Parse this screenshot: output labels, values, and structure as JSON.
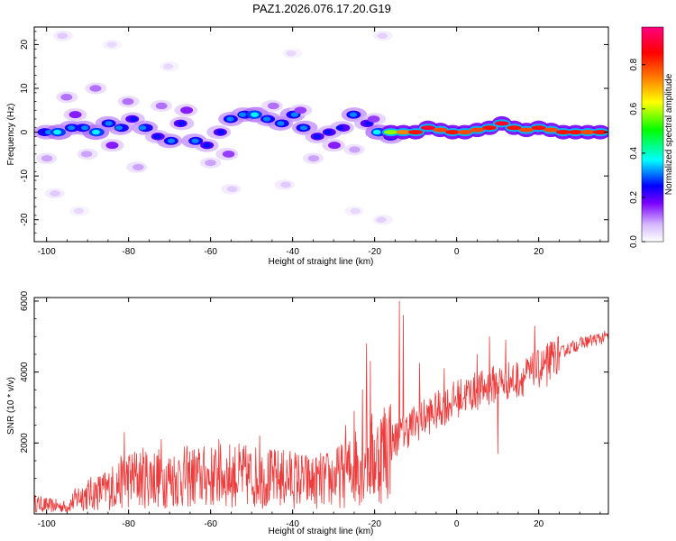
{
  "title": "PAZ1.2026.076.17.20.G19",
  "chart_data": [
    {
      "type": "heatmap",
      "title": "PAZ1.2026.076.17.20.G19",
      "xlabel": "Height of straight line (km)",
      "ylabel": "Frequency (Hz)",
      "xlim": [
        -103,
        37
      ],
      "ylim": [
        -25,
        24
      ],
      "x_ticks": [
        -100,
        -80,
        -60,
        -40,
        -20,
        0,
        20
      ],
      "y_ticks": [
        20,
        10,
        0,
        -10,
        -20
      ],
      "x_tick_labels": [
        "-100",
        "-80",
        "-60",
        "-40",
        "-20",
        "0",
        "20"
      ],
      "y_tick_labels": [
        "20",
        "10",
        "0",
        "-10",
        "-20"
      ],
      "description_of_structure": "broad noisy spread below -15 km, narrow high-amplitude line near 0 Hz above -15 km",
      "blobs": [
        [
          -100,
          0,
          0.3
        ],
        [
          -97,
          0,
          0.35
        ],
        [
          -94,
          1,
          0.3
        ],
        [
          -91,
          1,
          0.3
        ],
        [
          -88,
          0,
          0.35
        ],
        [
          -85,
          2,
          0.3
        ],
        [
          -82,
          1,
          0.3
        ],
        [
          -79,
          3,
          0.25
        ],
        [
          -76,
          1,
          0.3
        ],
        [
          -73,
          -1,
          0.25
        ],
        [
          -70,
          -2,
          0.3
        ],
        [
          -67,
          2,
          0.25
        ],
        [
          -64,
          -2,
          0.3
        ],
        [
          -61,
          -3,
          0.25
        ],
        [
          -58,
          0,
          0.25
        ],
        [
          -55,
          3,
          0.3
        ],
        [
          -52,
          4,
          0.3
        ],
        [
          -49,
          4,
          0.35
        ],
        [
          -46,
          3,
          0.3
        ],
        [
          -43,
          2,
          0.3
        ],
        [
          -40,
          4,
          0.3
        ],
        [
          -37,
          1,
          0.3
        ],
        [
          -34,
          -1,
          0.25
        ],
        [
          -31,
          0,
          0.25
        ],
        [
          -28,
          1,
          0.25
        ],
        [
          -25,
          4,
          0.3
        ],
        [
          -22,
          2,
          0.25
        ],
        [
          -19,
          0,
          0.35
        ],
        [
          -16,
          -1,
          0.3
        ],
        [
          -95,
          8,
          0.15
        ],
        [
          -88,
          10,
          0.15
        ],
        [
          -80,
          7,
          0.15
        ],
        [
          -72,
          6,
          0.15
        ],
        [
          -100,
          -6,
          0.12
        ],
        [
          -90,
          -5,
          0.12
        ],
        [
          -78,
          -8,
          0.12
        ],
        [
          -60,
          -7,
          0.12
        ],
        [
          -45,
          6,
          0.15
        ],
        [
          -35,
          -6,
          0.12
        ],
        [
          -25,
          -4,
          0.12
        ],
        [
          -93,
          4,
          0.2
        ],
        [
          -84,
          -3,
          0.2
        ],
        [
          -66,
          5,
          0.2
        ],
        [
          -56,
          -5,
          0.18
        ],
        [
          -38,
          5,
          0.18
        ],
        [
          -30,
          -3,
          0.2
        ],
        [
          -20,
          3,
          0.18
        ],
        [
          -98,
          -14,
          0.08
        ],
        [
          -96,
          22,
          0.08
        ],
        [
          -92,
          -18,
          0.06
        ],
        [
          -84,
          20,
          0.06
        ],
        [
          -55,
          -13,
          0.08
        ],
        [
          -42,
          -12,
          0.08
        ],
        [
          -40,
          18,
          0.06
        ],
        [
          -25,
          -18,
          0.06
        ],
        [
          -18,
          -20,
          0.07
        ],
        [
          -18,
          22,
          0.07
        ],
        [
          -70,
          15,
          0.06
        ]
      ],
      "ridge": [
        [
          -16,
          0,
          0.6
        ],
        [
          -13,
          0,
          0.75
        ],
        [
          -10,
          0,
          0.85
        ],
        [
          -7,
          1,
          0.9
        ],
        [
          -4,
          0.5,
          0.8
        ],
        [
          -1,
          0,
          0.85
        ],
        [
          2,
          0,
          0.8
        ],
        [
          5,
          0.5,
          0.8
        ],
        [
          8,
          1,
          0.85
        ],
        [
          11,
          2,
          0.9
        ],
        [
          14,
          1,
          0.85
        ],
        [
          17,
          0.5,
          0.8
        ],
        [
          20,
          1,
          0.85
        ],
        [
          23,
          0.5,
          0.8
        ],
        [
          26,
          0,
          0.85
        ],
        [
          29,
          0,
          0.85
        ],
        [
          32,
          0,
          0.8
        ],
        [
          35,
          0,
          0.85
        ]
      ],
      "colorbar": {
        "label": "Normalized spectral amplitude",
        "ticks": [
          0.0,
          0.2,
          0.4,
          0.6,
          0.8
        ],
        "tick_labels": [
          "0.0",
          "0.2",
          "0.4",
          "0.6",
          "0.8"
        ],
        "vmin": 0.0,
        "vmax": 0.97,
        "colormap": [
          "#ffffff",
          "#d6b8ff",
          "#7a00ff",
          "#0000ff",
          "#00ffff",
          "#00ff00",
          "#ffff00",
          "#ff8000",
          "#ff0000",
          "#ff0080"
        ]
      }
    },
    {
      "type": "line",
      "xlabel": "Height of straight line (km)",
      "ylabel": "SNR (10 * v/v)",
      "xlim": [
        -103,
        37
      ],
      "ylim": [
        0,
        6100
      ],
      "x_ticks": [
        -100,
        -80,
        -60,
        -40,
        -20,
        0,
        20
      ],
      "y_ticks": [
        2000,
        4000,
        6000
      ],
      "x_tick_labels": [
        "-100",
        "-80",
        "-60",
        "-40",
        "-20",
        "0",
        "20"
      ],
      "y_tick_labels": [
        "2000",
        "4000",
        "6000"
      ],
      "color": "#ee3b3b",
      "anchors": [
        [
          -103,
          300
        ],
        [
          -100,
          250
        ],
        [
          -95,
          200
        ],
        [
          -92,
          500
        ],
        [
          -88,
          600
        ],
        [
          -85,
          700
        ],
        [
          -80,
          1000
        ],
        [
          -75,
          1050
        ],
        [
          -70,
          1000
        ],
        [
          -65,
          1050
        ],
        [
          -60,
          1050
        ],
        [
          -55,
          1100
        ],
        [
          -50,
          1050
        ],
        [
          -45,
          1000
        ],
        [
          -40,
          1000
        ],
        [
          -35,
          900
        ],
        [
          -30,
          1000
        ],
        [
          -26,
          1200
        ],
        [
          -22,
          1700
        ],
        [
          -20,
          1500
        ],
        [
          -18,
          1800
        ],
        [
          -15,
          2100
        ],
        [
          -13,
          2300
        ],
        [
          -11,
          2500
        ],
        [
          -8,
          2700
        ],
        [
          -5,
          2900
        ],
        [
          -2,
          3100
        ],
        [
          0,
          3250
        ],
        [
          3,
          3400
        ],
        [
          6,
          3500
        ],
        [
          9,
          3650
        ],
        [
          12,
          3750
        ],
        [
          15,
          3800
        ],
        [
          18,
          3950
        ],
        [
          21,
          4150
        ],
        [
          24,
          4450
        ],
        [
          27,
          4650
        ],
        [
          30,
          4800
        ],
        [
          33,
          4900
        ],
        [
          37,
          5000
        ]
      ],
      "spikes": [
        [
          -81,
          2300
        ],
        [
          -72,
          2100
        ],
        [
          -58,
          2100
        ],
        [
          -48,
          2200
        ],
        [
          -27,
          2500
        ],
        [
          -25,
          2900
        ],
        [
          -23,
          3500
        ],
        [
          -22,
          4800
        ],
        [
          -21,
          4300
        ],
        [
          -14,
          6000
        ],
        [
          -13,
          5600
        ],
        [
          -9,
          4250
        ],
        [
          -3,
          4100
        ],
        [
          5,
          4500
        ],
        [
          8,
          5000
        ],
        [
          10,
          1700
        ],
        [
          12,
          4900
        ],
        [
          14,
          3500
        ],
        [
          19,
          5300
        ],
        [
          22,
          3600
        ],
        [
          23,
          4200
        ]
      ]
    }
  ]
}
